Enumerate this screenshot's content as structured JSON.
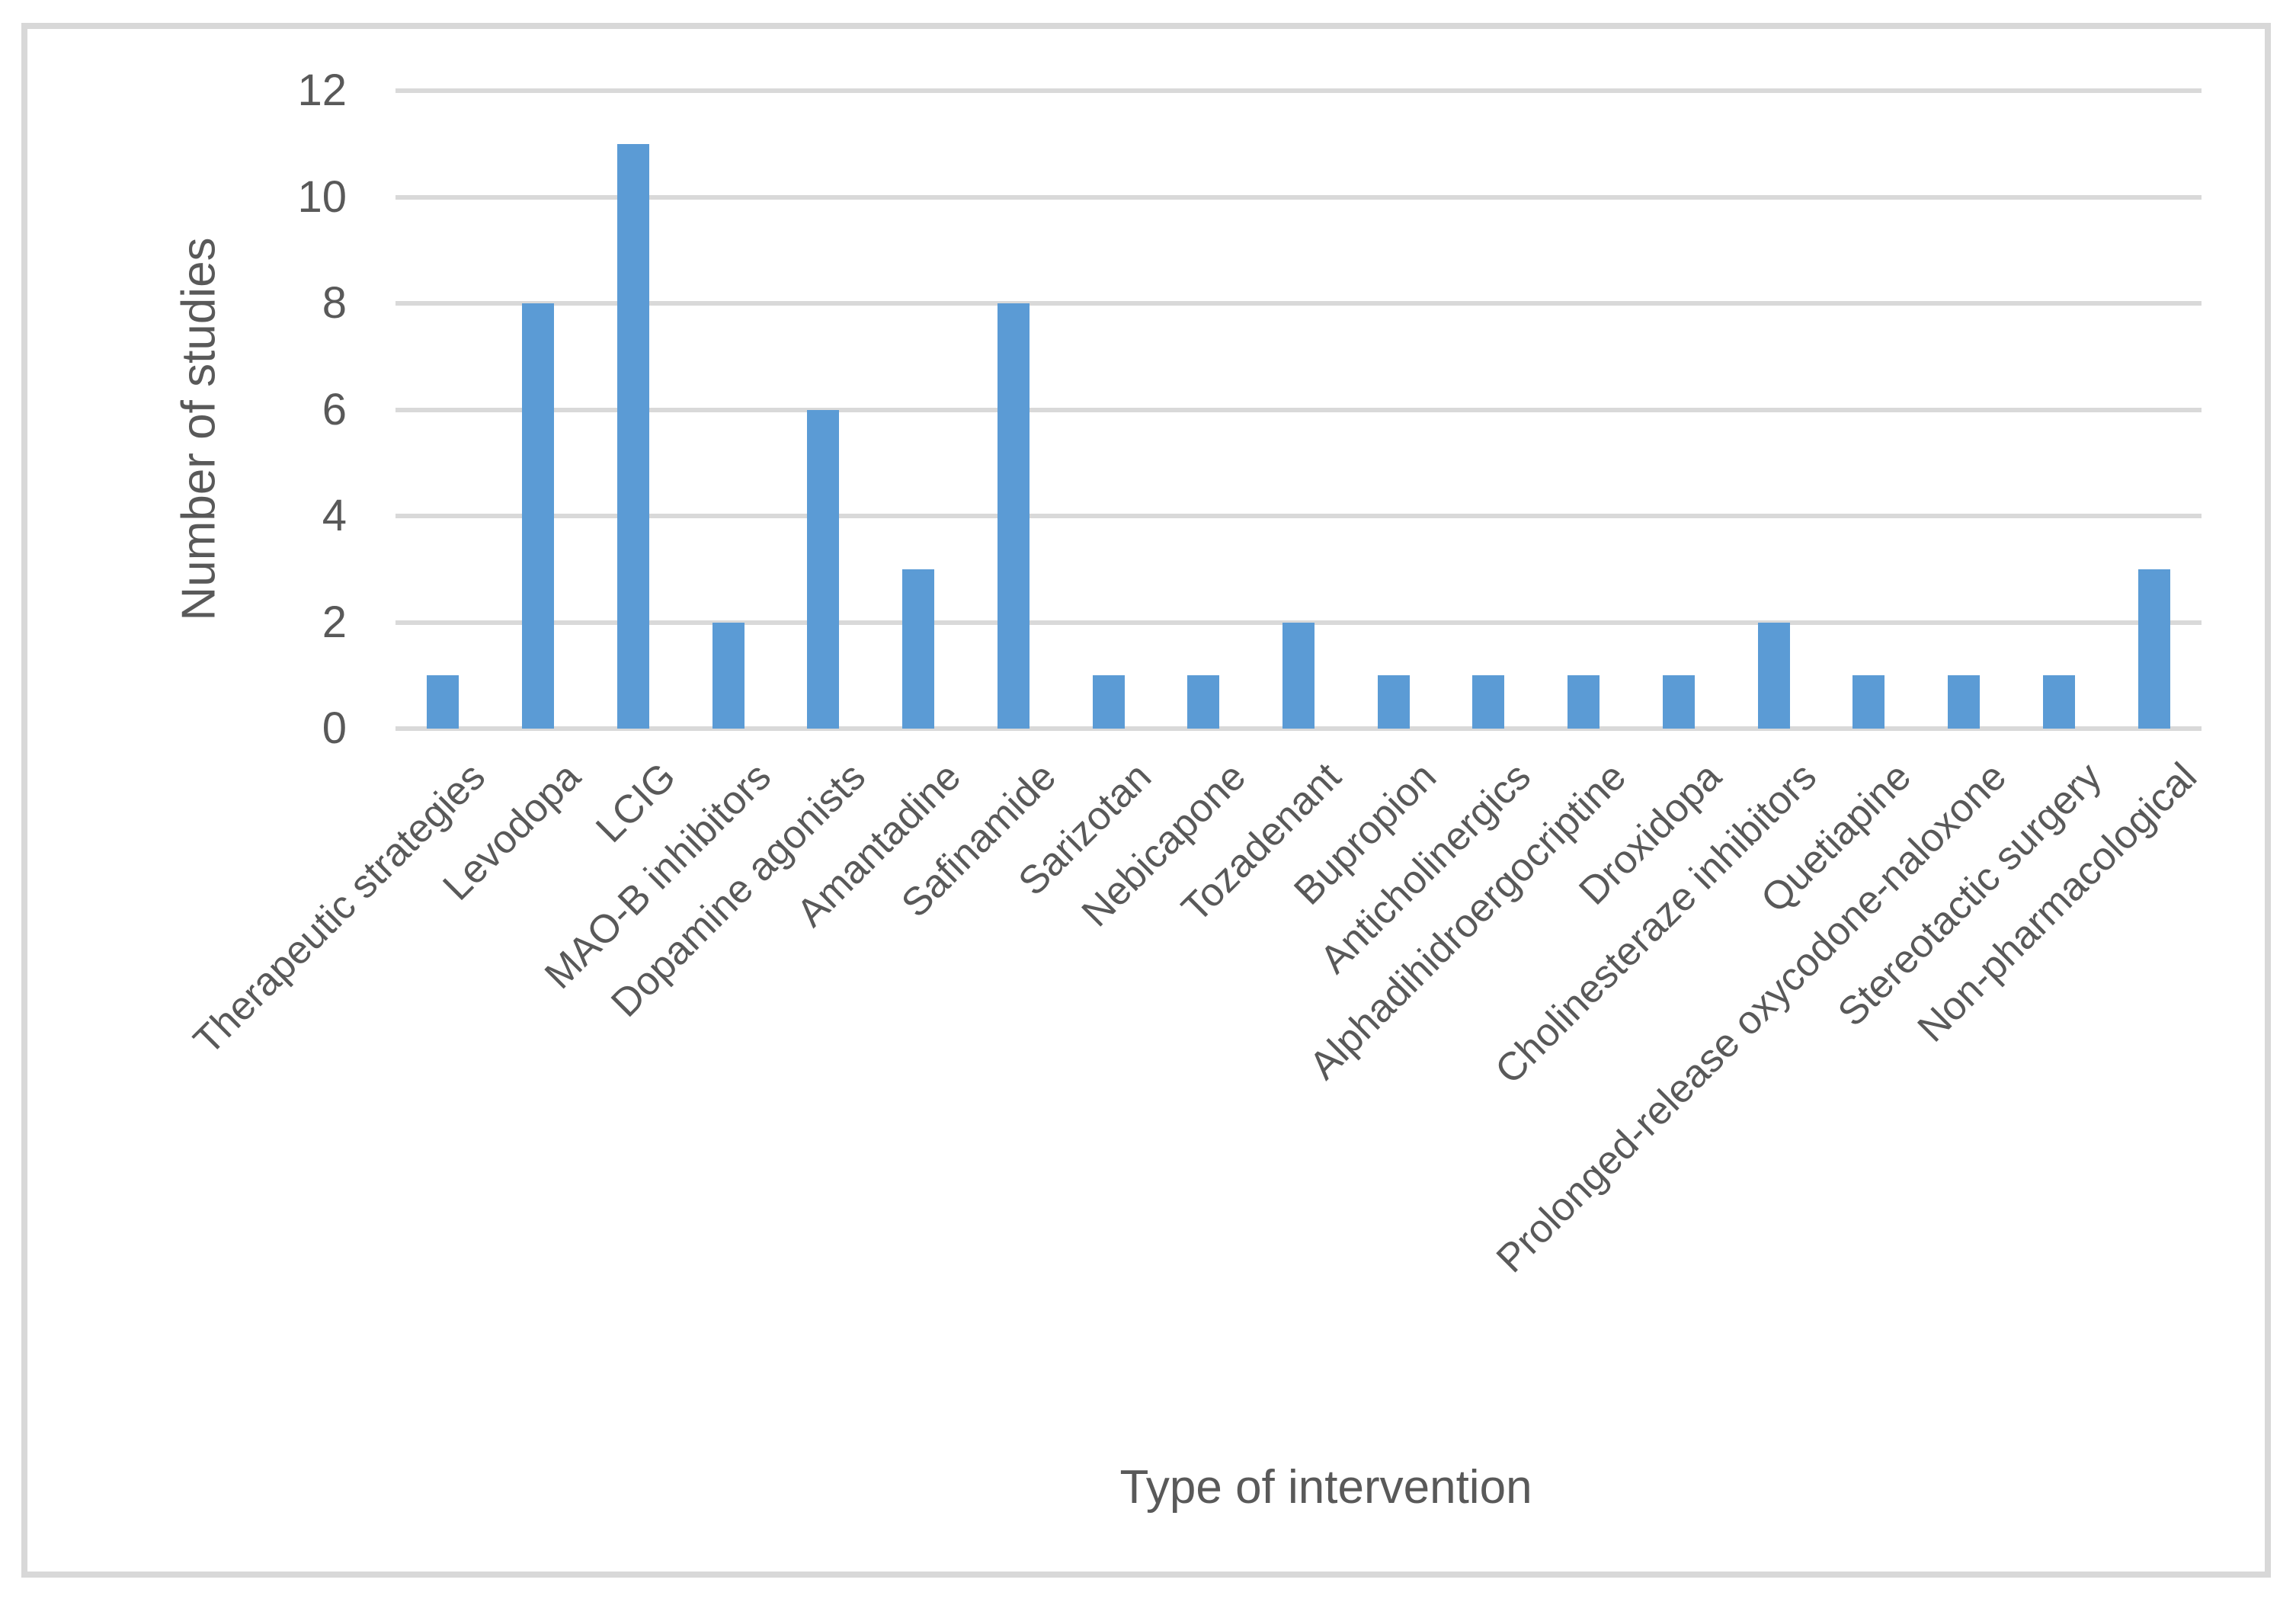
{
  "chart_data": {
    "type": "bar",
    "title": "",
    "xlabel": "Type of intervention",
    "ylabel": "Number of studies",
    "categories": [
      "Therapeutic strategies",
      "Levodopa",
      "LCIG",
      "MAO-B inhibitors",
      "Dopamine agonists",
      "Amantadine",
      "Safinamide",
      "Sarizotan",
      "Nebicapone",
      "Tozadenant",
      "Bupropion",
      "Anticholinergics",
      "Alphadihidroergocriptine",
      "Droxidopa",
      "Cholinesteraze inhibitors",
      "Quetiapine",
      "Prolonged-release oxycodone-naloxone",
      "Stereotactic surgery",
      "Non-pharmacological"
    ],
    "values": [
      1,
      8,
      11,
      2,
      6,
      3,
      8,
      1,
      1,
      2,
      1,
      1,
      1,
      1,
      2,
      1,
      1,
      1,
      3
    ],
    "yticks": [
      0,
      2,
      4,
      6,
      8,
      10,
      12
    ],
    "ylim": [
      0,
      12
    ],
    "grid": true,
    "legend_position": "none",
    "bar_color": "#5B9BD5",
    "gridline_color": "#D9D9D9",
    "text_color": "#595959",
    "frame_border_color": "#D8D8D8"
  }
}
